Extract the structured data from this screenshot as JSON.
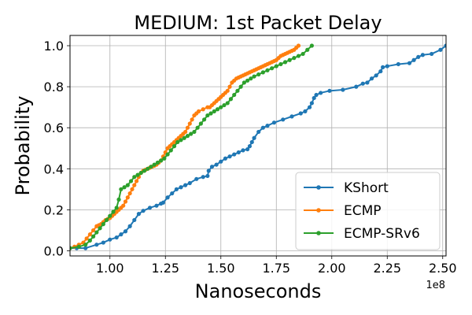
{
  "chart_data": {
    "type": "line",
    "title": "MEDIUM: 1st Packet Delay",
    "xlabel": "Nanoseconds",
    "ylabel": "Probability",
    "x_offset_label": "1e8",
    "x_scale_exponent": 8,
    "xlim": [
      82000000,
      251500000
    ],
    "ylim": [
      -0.025,
      1.05
    ],
    "x_ticks": [
      100000000,
      125000000,
      150000000,
      175000000,
      200000000,
      225000000,
      250000000
    ],
    "x_tick_labels": [
      "1.00",
      "1.25",
      "1.50",
      "1.75",
      "2.00",
      "2.25",
      "2.50"
    ],
    "y_ticks": [
      0.0,
      0.2,
      0.4,
      0.6,
      0.8,
      1.0
    ],
    "y_tick_labels": [
      "0.0",
      "0.2",
      "0.4",
      "0.6",
      "0.8",
      "1.0"
    ],
    "grid": true,
    "legend_position": "lower-right",
    "series": [
      {
        "name": "KShort",
        "color": "#1f77b4",
        "x": [
          82000000,
          85000000,
          89000000,
          94000000,
          97000000,
          100000000,
          103000000,
          105000000,
          107000000,
          109000000,
          111000000,
          113000000,
          115000000,
          118000000,
          121000000,
          123000000,
          124000000,
          126000000,
          128000000,
          130000000,
          132000000,
          134000000,
          136000000,
          139000000,
          142000000,
          144000000,
          144500000,
          146000000,
          148000000,
          150000000,
          152000000,
          154000000,
          156000000,
          158000000,
          160000000,
          162000000,
          163000000,
          164000000,
          165000000,
          167000000,
          169000000,
          171000000,
          174000000,
          178000000,
          182000000,
          186000000,
          188000000,
          190000000,
          191000000,
          192000000,
          193000000,
          195000000,
          199000000,
          205000000,
          211000000,
          214000000,
          216000000,
          218000000,
          220000000,
          222000000,
          223000000,
          225000000,
          230000000,
          235000000,
          237000000,
          239000000,
          241000000,
          245000000,
          249000000,
          251500000
        ],
        "y": [
          0.013,
          0.013,
          0.013,
          0.03,
          0.04,
          0.055,
          0.065,
          0.08,
          0.095,
          0.12,
          0.15,
          0.18,
          0.195,
          0.21,
          0.22,
          0.23,
          0.235,
          0.26,
          0.28,
          0.3,
          0.31,
          0.32,
          0.33,
          0.35,
          0.36,
          0.365,
          0.39,
          0.41,
          0.42,
          0.435,
          0.45,
          0.46,
          0.47,
          0.48,
          0.49,
          0.495,
          0.51,
          0.53,
          0.55,
          0.58,
          0.6,
          0.61,
          0.625,
          0.64,
          0.655,
          0.67,
          0.68,
          0.7,
          0.72,
          0.745,
          0.76,
          0.77,
          0.78,
          0.785,
          0.8,
          0.815,
          0.82,
          0.84,
          0.855,
          0.875,
          0.895,
          0.9,
          0.91,
          0.915,
          0.93,
          0.945,
          0.955,
          0.96,
          0.98,
          1.0
        ]
      },
      {
        "name": "ECMP",
        "color": "#ff7f0e",
        "x": [
          82000000,
          84000000,
          86000000,
          88000000,
          89500000,
          91000000,
          92500000,
          94000000,
          95000000,
          96000000,
          97000000,
          98000000,
          99000000,
          100000000,
          101000000,
          102000000,
          103000000,
          104000000,
          105000000,
          106000000,
          107000000,
          108000000,
          109000000,
          110000000,
          111000000,
          112000000,
          113000000,
          114000000,
          115000000,
          116000000,
          117000000,
          118000000,
          119000000,
          120000000,
          121000000,
          122000000,
          123000000,
          124000000,
          125000000,
          126000000,
          127000000,
          128000000,
          129000000,
          130000000,
          131000000,
          132000000,
          133000000,
          134000000,
          135000000,
          136000000,
          137000000,
          138000000,
          139000000,
          140000000,
          142000000,
          144000000,
          145000000,
          146000000,
          147000000,
          148000000,
          149000000,
          150000000,
          151000000,
          152000000,
          153000000,
          154000000,
          155000000,
          156000000,
          157000000,
          158000000,
          159000000,
          160000000,
          161000000,
          162000000,
          163000000,
          164000000,
          165000000,
          166000000,
          167000000,
          168000000,
          169000000,
          170000000,
          171000000,
          172000000,
          173000000,
          174000000,
          175000000,
          176000000,
          177000000,
          178000000,
          179000000,
          180000000,
          181000000,
          182000000,
          183000000,
          184000000,
          185000000
        ],
        "y": [
          0.013,
          0.02,
          0.03,
          0.04,
          0.06,
          0.08,
          0.1,
          0.12,
          0.125,
          0.13,
          0.14,
          0.15,
          0.155,
          0.16,
          0.17,
          0.18,
          0.19,
          0.2,
          0.21,
          0.22,
          0.24,
          0.26,
          0.28,
          0.3,
          0.32,
          0.34,
          0.36,
          0.38,
          0.39,
          0.395,
          0.4,
          0.405,
          0.41,
          0.415,
          0.42,
          0.43,
          0.44,
          0.46,
          0.48,
          0.5,
          0.51,
          0.52,
          0.53,
          0.54,
          0.55,
          0.56,
          0.57,
          0.58,
          0.6,
          0.62,
          0.64,
          0.66,
          0.67,
          0.68,
          0.69,
          0.7,
          0.7,
          0.71,
          0.72,
          0.73,
          0.74,
          0.75,
          0.76,
          0.77,
          0.78,
          0.8,
          0.82,
          0.83,
          0.84,
          0.845,
          0.85,
          0.855,
          0.86,
          0.865,
          0.87,
          0.875,
          0.88,
          0.885,
          0.89,
          0.895,
          0.9,
          0.905,
          0.91,
          0.915,
          0.92,
          0.925,
          0.93,
          0.94,
          0.95,
          0.955,
          0.96,
          0.965,
          0.97,
          0.975,
          0.98,
          0.99,
          1.0
        ]
      },
      {
        "name": "ECMP-SRv6",
        "color": "#2ca02c",
        "x": [
          82000000,
          86000000,
          89000000,
          91000000,
          92500000,
          94000000,
          95500000,
          97000000,
          98500000,
          100000000,
          101500000,
          103000000,
          104000000,
          105000000,
          106500000,
          108000000,
          109500000,
          111000000,
          112500000,
          114000000,
          115500000,
          117000000,
          118500000,
          120000000,
          121500000,
          123000000,
          124500000,
          126000000,
          127500000,
          129000000,
          130500000,
          132000000,
          133500000,
          135000000,
          136500000,
          138000000,
          139500000,
          141000000,
          142500000,
          144000000,
          145500000,
          147000000,
          148500000,
          150000000,
          151500000,
          153000000,
          154500000,
          156000000,
          157500000,
          159000000,
          160500000,
          162000000,
          163500000,
          165000000,
          167000000,
          169000000,
          171000000,
          173000000,
          175000000,
          177000000,
          179000000,
          181000000,
          183000000,
          185000000,
          187000000,
          189000000,
          191000000
        ],
        "y": [
          0.013,
          0.02,
          0.03,
          0.05,
          0.07,
          0.09,
          0.11,
          0.13,
          0.15,
          0.17,
          0.19,
          0.21,
          0.25,
          0.3,
          0.31,
          0.32,
          0.34,
          0.36,
          0.37,
          0.38,
          0.39,
          0.4,
          0.41,
          0.42,
          0.43,
          0.44,
          0.45,
          0.47,
          0.49,
          0.51,
          0.53,
          0.54,
          0.55,
          0.56,
          0.57,
          0.58,
          0.6,
          0.62,
          0.64,
          0.66,
          0.67,
          0.68,
          0.69,
          0.7,
          0.71,
          0.72,
          0.74,
          0.76,
          0.78,
          0.8,
          0.82,
          0.83,
          0.84,
          0.85,
          0.86,
          0.87,
          0.88,
          0.89,
          0.9,
          0.91,
          0.92,
          0.93,
          0.94,
          0.95,
          0.96,
          0.98,
          1.0
        ]
      }
    ]
  }
}
